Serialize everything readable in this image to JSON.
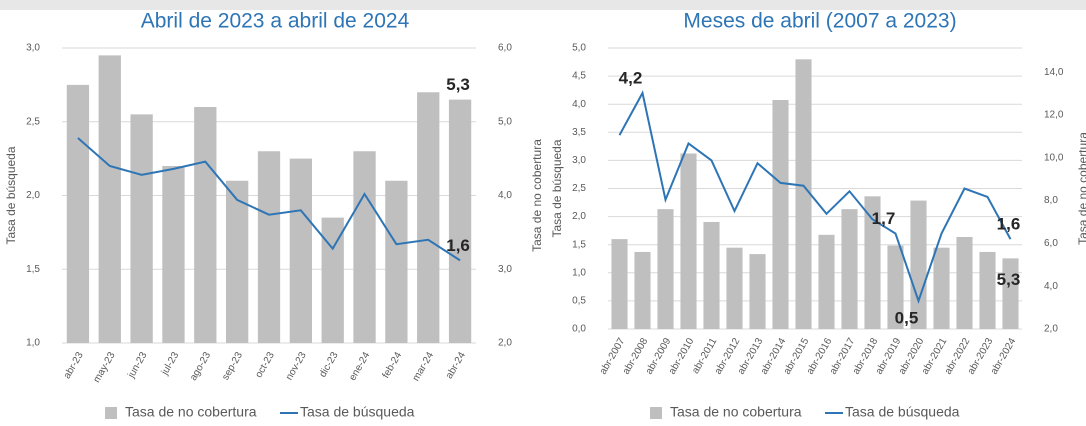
{
  "chart_data": [
    {
      "type": "combo",
      "title": "Abril de 2023 a abril de 2024",
      "y_label": "Tasa de búsqueda",
      "y2_label": "Tasa de no cobertura",
      "categories": [
        "abr-23",
        "may-23",
        "jun-23",
        "jul-23",
        "ago-23",
        "sep-23",
        "oct-23",
        "nov-23",
        "dic-23",
        "ene-24",
        "feb-24",
        "mar-24",
        "abr-24"
      ],
      "series": [
        {
          "name": "Tasa de no cobertura",
          "type": "bar",
          "axis": "y2",
          "color": "#bfbfbf",
          "values": [
            5.5,
            5.9,
            5.1,
            4.4,
            5.2,
            4.2,
            4.6,
            4.5,
            3.7,
            4.6,
            4.2,
            5.4,
            5.3
          ],
          "value_labels": [
            null,
            null,
            null,
            null,
            null,
            null,
            null,
            null,
            null,
            null,
            null,
            null,
            "5,3"
          ]
        },
        {
          "name": "Tasa de búsqueda",
          "type": "line",
          "axis": "y",
          "color": "#2e75b6",
          "values": [
            2.39,
            2.2,
            2.14,
            2.18,
            2.23,
            1.97,
            1.87,
            1.9,
            1.64,
            2.01,
            1.67,
            1.7,
            1.56
          ],
          "value_labels": [
            null,
            null,
            null,
            null,
            null,
            null,
            null,
            null,
            null,
            null,
            null,
            null,
            "1,6"
          ]
        }
      ],
      "ylim": [
        1,
        3
      ],
      "yticks": [
        {
          "value": 1,
          "label": "1,0"
        },
        {
          "value": 1.5,
          "label": "1,5"
        },
        {
          "value": 2,
          "label": "2,0"
        },
        {
          "value": 2.5,
          "label": "2,5"
        },
        {
          "value": 3,
          "label": "3,0"
        }
      ],
      "y2lim": [
        2,
        6
      ],
      "y2ticks": [
        {
          "value": 2,
          "label": "2,0"
        },
        {
          "value": 3,
          "label": "3,0"
        },
        {
          "value": 4,
          "label": "4,0"
        },
        {
          "value": 5,
          "label": "5,0"
        },
        {
          "value": 6,
          "label": "6,0"
        }
      ],
      "grid": true
    },
    {
      "type": "combo",
      "title": "Meses de abril (2007 a 2023)",
      "y_label": "Tasa de búsqueda",
      "y2_label": "Tasa de no cobertura",
      "categories": [
        "abr-2007",
        "abr-2008",
        "abr-2009",
        "abr-2010",
        "abr-2011",
        "abr-2012",
        "abr-2013",
        "abr-2014",
        "abr-2015",
        "abr-2016",
        "abr-2017",
        "abr-2018",
        "abr-2019",
        "abr-2020",
        "abr-2021",
        "abr-2022",
        "abr-2023",
        "abr-2024"
      ],
      "series": [
        {
          "name": "Tasa de no cobertura",
          "type": "bar",
          "axis": "y2",
          "color": "#bfbfbf",
          "values": [
            6.2,
            5.6,
            7.6,
            10.2,
            7.0,
            5.8,
            5.5,
            12.7,
            14.6,
            6.4,
            7.6,
            8.2,
            5.9,
            8.0,
            5.8,
            6.3,
            5.6,
            5.3
          ],
          "value_labels": [
            null,
            null,
            null,
            null,
            null,
            null,
            null,
            null,
            null,
            null,
            null,
            null,
            null,
            null,
            null,
            null,
            null,
            "5,3"
          ]
        },
        {
          "name": "Tasa de búsqueda",
          "type": "line",
          "axis": "y",
          "color": "#2e75b6",
          "values": [
            3.45,
            4.2,
            2.3,
            3.3,
            3.0,
            2.1,
            2.95,
            2.6,
            2.55,
            2.05,
            2.45,
            1.95,
            1.7,
            0.5,
            1.7,
            2.5,
            2.35,
            1.6
          ],
          "value_labels": [
            null,
            "4,2",
            null,
            null,
            null,
            null,
            null,
            null,
            null,
            null,
            null,
            null,
            "1,7",
            "0,5",
            null,
            null,
            null,
            "1,6"
          ]
        }
      ],
      "ylim": [
        0,
        5
      ],
      "yticks": [
        {
          "value": 0,
          "label": "0,0"
        },
        {
          "value": 0.5,
          "label": "0,5"
        },
        {
          "value": 1,
          "label": "1,0"
        },
        {
          "value": 1.5,
          "label": "1,5"
        },
        {
          "value": 2,
          "label": "2,0"
        },
        {
          "value": 2.5,
          "label": "2,5"
        },
        {
          "value": 3,
          "label": "3,0"
        },
        {
          "value": 3.5,
          "label": "3,5"
        },
        {
          "value": 4,
          "label": "4,0"
        },
        {
          "value": 4.5,
          "label": "4,5"
        },
        {
          "value": 5,
          "label": "5,0"
        }
      ],
      "y2lim": [
        2,
        15.13
      ],
      "y2ticks": [
        {
          "value": 2,
          "label": "2,0"
        },
        {
          "value": 4,
          "label": "4,0"
        },
        {
          "value": 6,
          "label": "6,0"
        },
        {
          "value": 8,
          "label": "8,0"
        },
        {
          "value": 10,
          "label": "10,0"
        },
        {
          "value": 12,
          "label": "12,0"
        },
        {
          "value": 14,
          "label": "14,0"
        }
      ],
      "grid": true
    }
  ]
}
